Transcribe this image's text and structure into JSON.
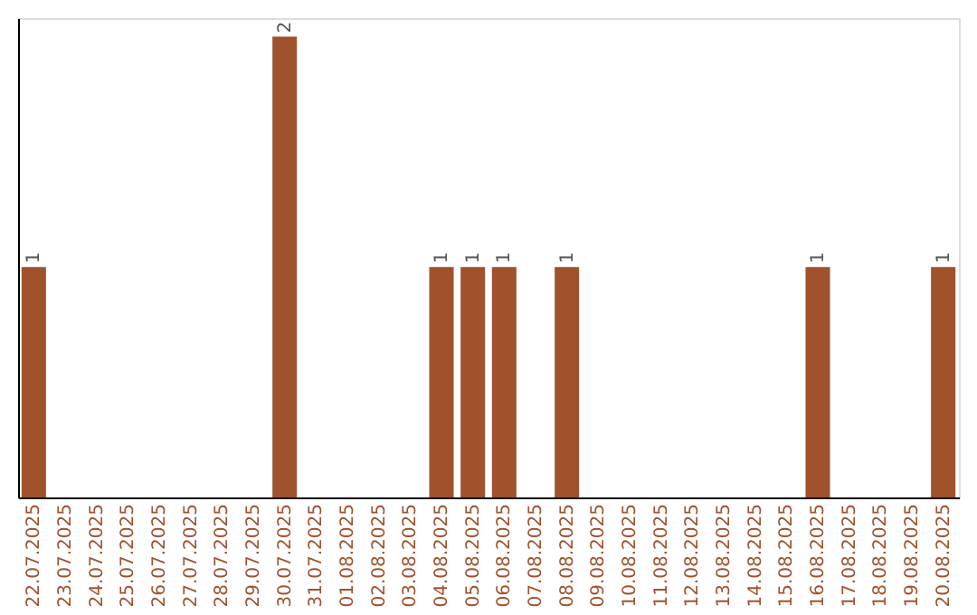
{
  "chart_data": {
    "type": "bar",
    "categories": [
      "22.07.2025",
      "23.07.2025",
      "24.07.2025",
      "25.07.2025",
      "26.07.2025",
      "27.07.2025",
      "28.07.2025",
      "29.07.2025",
      "30.07.2025",
      "31.07.2025",
      "01.08.2025",
      "02.08.2025",
      "03.08.2025",
      "04.08.2025",
      "05.08.2025",
      "06.08.2025",
      "07.08.2025",
      "08.08.2025",
      "09.08.2025",
      "10.08.2025",
      "11.08.2025",
      "12.08.2025",
      "13.08.2025",
      "14.08.2025",
      "15.08.2025",
      "16.08.2025",
      "17.08.2025",
      "18.08.2025",
      "19.08.2025",
      "20.08.2025"
    ],
    "values": [
      1,
      0,
      0,
      0,
      0,
      0,
      0,
      0,
      2,
      0,
      0,
      0,
      0,
      1,
      1,
      1,
      0,
      1,
      0,
      0,
      0,
      0,
      0,
      0,
      0,
      1,
      0,
      0,
      0,
      1
    ],
    "value_labels": [
      "1",
      null,
      null,
      null,
      null,
      null,
      null,
      null,
      "2",
      null,
      null,
      null,
      null,
      "1",
      "1",
      "1",
      null,
      "1",
      null,
      null,
      null,
      null,
      null,
      null,
      null,
      "1",
      null,
      null,
      null,
      "1"
    ],
    "color": "#a0522d",
    "ylim": [
      0,
      2.08
    ],
    "tick_labels": "x",
    "grid": false
  }
}
